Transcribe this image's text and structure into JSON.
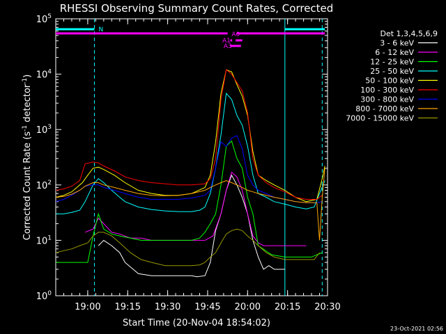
{
  "chart_data": {
    "type": "line",
    "title": "RHESSI Observing Summary Count Rates, Corrected",
    "xlabel": "Start Time (20-Nov-04 18:54:02)",
    "ylabel_main": "Corrected Count Rate (s",
    "ylabel_sup1": "-1",
    "ylabel_mid": " detector",
    "ylabel_sup2": "-1",
    "ylabel_end": ")",
    "y_scale": "log",
    "ylim_exp": [
      0,
      5
    ],
    "xlim_min": [
      -6,
      96
    ],
    "x_ticks": [
      {
        "t": 6,
        "label": "19:00"
      },
      {
        "t": 21,
        "label": "19:15"
      },
      {
        "t": 36,
        "label": "19:30"
      },
      {
        "t": 51,
        "label": "19:45"
      },
      {
        "t": 66,
        "label": "20:00"
      },
      {
        "t": 81,
        "label": "20:15"
      },
      {
        "t": 96,
        "label": "20:30"
      }
    ],
    "y_tick_base": "10",
    "y_ticks_exp": [
      "0",
      "1",
      "2",
      "3",
      "4",
      "5"
    ],
    "legend_title": "Det 1,3,4,5,6,9",
    "series": [
      {
        "name": "3 - 6 keV",
        "color": "#ffffff",
        "x": [
          -6,
          5,
          10,
          12,
          15,
          18,
          20,
          25,
          30,
          35,
          40,
          45,
          47,
          50,
          52,
          54,
          56,
          58,
          60,
          62,
          64,
          66,
          68,
          70,
          72,
          74,
          76,
          78,
          80,
          85,
          88
        ],
        "y": [
          null,
          null,
          8,
          10,
          8,
          6,
          4,
          2.5,
          2.3,
          2.3,
          2.3,
          2.3,
          2.2,
          2.3,
          4,
          15,
          30,
          80,
          150,
          100,
          60,
          30,
          10,
          5,
          3,
          3.5,
          3,
          3,
          3,
          null,
          null
        ]
      },
      {
        "name": "6 - 12 keV",
        "color": "#ff00ff",
        "x": [
          5,
          8,
          10,
          12,
          15,
          18,
          22,
          26,
          30,
          35,
          40,
          45,
          48,
          50,
          53,
          56,
          58,
          60,
          62,
          64,
          66,
          68,
          70,
          72,
          75,
          80,
          85,
          88
        ],
        "y": [
          14,
          16,
          25,
          20,
          14,
          13,
          11,
          11,
          10,
          10,
          10,
          10,
          10,
          10,
          12,
          30,
          80,
          170,
          140,
          80,
          30,
          12,
          9,
          8,
          8,
          8,
          8,
          8
        ]
      },
      {
        "name": "12 - 25 keV",
        "color": "#00ff00",
        "x": [
          -6,
          -3,
          0,
          3,
          6,
          8,
          10,
          12,
          15,
          18,
          22,
          26,
          30,
          35,
          40,
          45,
          48,
          50,
          52,
          54,
          56,
          58,
          60,
          62,
          64,
          66,
          68,
          70,
          75,
          80,
          85,
          88,
          90,
          92,
          94
        ],
        "y": [
          4,
          4,
          4,
          4,
          4,
          12,
          30,
          16,
          13,
          12,
          11,
          10,
          10,
          10,
          10,
          10,
          11,
          14,
          20,
          30,
          100,
          500,
          620,
          300,
          200,
          60,
          30,
          8,
          5.5,
          5,
          5,
          5,
          5,
          5.5,
          6
        ]
      },
      {
        "name": "25 - 50 keV",
        "color": "#00ffff",
        "x": [
          -6,
          -3,
          0,
          3,
          5,
          8,
          10,
          12,
          15,
          18,
          20,
          25,
          30,
          35,
          40,
          45,
          48,
          50,
          52,
          54,
          56,
          58,
          60,
          62,
          64,
          66,
          68,
          70,
          73,
          76,
          80,
          84,
          88,
          91,
          93,
          95
        ],
        "y": [
          30,
          30,
          32,
          35,
          50,
          100,
          130,
          110,
          80,
          60,
          50,
          40,
          36,
          34,
          33,
          33,
          35,
          40,
          70,
          200,
          800,
          4500,
          3500,
          1800,
          1200,
          500,
          150,
          70,
          60,
          50,
          45,
          40,
          37,
          40,
          70,
          120
        ]
      },
      {
        "name": "50 - 100 keV",
        "color": "#ffff00",
        "x": [
          -6,
          -3,
          0,
          4,
          6,
          8,
          10,
          12,
          16,
          20,
          25,
          30,
          35,
          40,
          45,
          50,
          52,
          54,
          56,
          58,
          60,
          62,
          64,
          66,
          68,
          70,
          73,
          76,
          80,
          84,
          88,
          92,
          94,
          95
        ],
        "y": [
          60,
          65,
          75,
          110,
          150,
          200,
          210,
          190,
          150,
          110,
          80,
          70,
          65,
          65,
          70,
          90,
          150,
          600,
          4500,
          12000,
          11000,
          6500,
          4000,
          1800,
          400,
          150,
          120,
          100,
          80,
          60,
          50,
          55,
          130,
          220
        ]
      },
      {
        "name": "100 - 300 keV",
        "color": "#ff0000",
        "x": [
          -6,
          -3,
          0,
          3,
          5,
          8,
          10,
          12,
          16,
          20,
          25,
          30,
          35,
          40,
          45,
          50,
          52,
          54,
          56,
          58,
          60,
          62,
          64,
          66,
          68,
          70,
          73,
          76,
          80,
          84,
          88,
          92,
          94
        ],
        "y": [
          80,
          85,
          95,
          120,
          240,
          260,
          250,
          220,
          180,
          140,
          120,
          110,
          105,
          100,
          100,
          105,
          130,
          300,
          3500,
          12000,
          10000,
          7000,
          5000,
          2000,
          300,
          150,
          110,
          90,
          75,
          60,
          55,
          55,
          65
        ]
      },
      {
        "name": "300 - 800 keV",
        "color": "#0000ff",
        "x": [
          -6,
          -3,
          0,
          3,
          5,
          8,
          10,
          12,
          16,
          20,
          25,
          30,
          35,
          40,
          45,
          50,
          52,
          54,
          56,
          58,
          60,
          62,
          64,
          66,
          68,
          70,
          73,
          76,
          80,
          84,
          88,
          92,
          94
        ],
        "y": [
          50,
          55,
          65,
          80,
          95,
          100,
          100,
          90,
          80,
          70,
          60,
          55,
          55,
          55,
          58,
          65,
          80,
          200,
          600,
          500,
          700,
          780,
          450,
          150,
          100,
          80,
          70,
          60,
          55,
          50,
          48,
          48,
          50
        ]
      },
      {
        "name": "800 - 7000 keV",
        "color": "#ffa500",
        "x": [
          -6,
          -3,
          0,
          3,
          5,
          8,
          10,
          12,
          16,
          20,
          25,
          30,
          35,
          40,
          45,
          50,
          52,
          54,
          56,
          58,
          60,
          62,
          64,
          66,
          68,
          70,
          73,
          76,
          80,
          84,
          88,
          92,
          93,
          94,
          95
        ],
        "y": [
          60,
          62,
          68,
          80,
          95,
          110,
          110,
          100,
          90,
          80,
          70,
          65,
          64,
          65,
          70,
          80,
          90,
          100,
          110,
          120,
          110,
          100,
          90,
          80,
          75,
          70,
          65,
          60,
          55,
          50,
          48,
          48,
          10,
          60,
          200
        ]
      },
      {
        "name": "7000 - 15000 keV",
        "color": "#999900",
        "x": [
          -6,
          -3,
          0,
          3,
          6,
          8,
          10,
          12,
          15,
          18,
          22,
          26,
          30,
          35,
          40,
          45,
          48,
          50,
          52,
          54,
          56,
          58,
          60,
          62,
          64,
          66,
          68,
          70,
          73,
          76,
          80,
          84,
          88,
          91,
          93
        ],
        "y": [
          6,
          6.5,
          7,
          8,
          9,
          12,
          14,
          14,
          12,
          9,
          6,
          4.5,
          4,
          3.5,
          3.5,
          3.5,
          3.6,
          4,
          5,
          6,
          9,
          13,
          15,
          16,
          15,
          12,
          10,
          8,
          6,
          5,
          4.5,
          4.5,
          4.5,
          4.5,
          6
        ]
      }
    ],
    "flags": {
      "N_label": "N",
      "A0_label": "A0",
      "A1_label": "A1",
      "A3_label": "A3",
      "N_segments": [
        [
          -6,
          8.5
        ],
        [
          80,
          95
        ]
      ],
      "A0_segments": [
        [
          -6,
          58.5
        ],
        [
          62,
          95
        ]
      ],
      "A1_segments": [
        [
          59.5,
          60.2
        ],
        [
          61.5,
          64
        ]
      ],
      "A3_segments": [
        [
          59.5,
          63.5
        ]
      ]
    },
    "vlines_solid": [
      80
    ],
    "vlines_dashed": [
      8.5,
      94
    ]
  },
  "timestamp": "23-Oct-2021 02:56"
}
